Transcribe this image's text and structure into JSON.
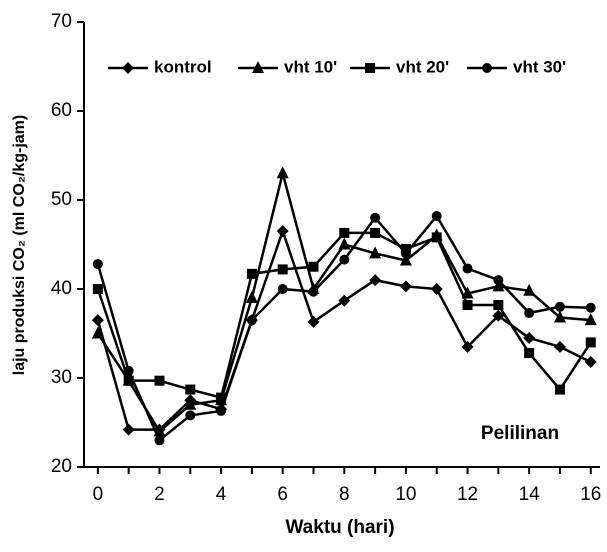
{
  "chart_data": {
    "type": "line",
    "xlabel": "Waktu (hari)",
    "ylabel": "laju produksi CO₂  (ml CO₂/kg-jam)",
    "annotation": "Pelilinan",
    "x": [
      0,
      1,
      2,
      3,
      4,
      5,
      6,
      7,
      8,
      9,
      10,
      11,
      12,
      13,
      14,
      15,
      16
    ],
    "series": [
      {
        "name": "kontrol",
        "color": "#000000",
        "marker": "diamond",
        "values": [
          36.5,
          24.2,
          24.2,
          27.5,
          26.5,
          36.5,
          46.5,
          36.3,
          38.7,
          41,
          40.3,
          40,
          33.5,
          37,
          34.5,
          33.5,
          31.8
        ]
      },
      {
        "name": "vht 10'",
        "color": "#000000",
        "marker": "triangle",
        "values": [
          35,
          29.7,
          24,
          27,
          27.5,
          39,
          53,
          40,
          45,
          44,
          43.2,
          46,
          39.5,
          40.3,
          39.8,
          36.8,
          36.5
        ]
      },
      {
        "name": "vht 20'",
        "color": "#000000",
        "marker": "square",
        "values": [
          40,
          29.7,
          29.7,
          28.7,
          27.8,
          41.7,
          42.2,
          42.5,
          46.3,
          46.3,
          44.5,
          45.8,
          38.2,
          38.2,
          32.8,
          28.7,
          34
        ]
      },
      {
        "name": "vht 30'",
        "color": "#000000",
        "marker": "circle",
        "values": [
          42.8,
          30.8,
          23,
          25.8,
          26.3,
          36.5,
          40,
          39.7,
          43.3,
          48,
          44,
          48.2,
          42.3,
          41,
          37.3,
          38,
          37.9
        ]
      }
    ],
    "xlim": [
      -0.45,
      16.3
    ],
    "xticks": [
      0,
      2,
      4,
      6,
      8,
      10,
      12,
      14,
      16
    ],
    "ylim": [
      20,
      70
    ],
    "yticks": [
      20,
      30,
      40,
      50,
      60,
      70
    ],
    "legend": "top"
  }
}
